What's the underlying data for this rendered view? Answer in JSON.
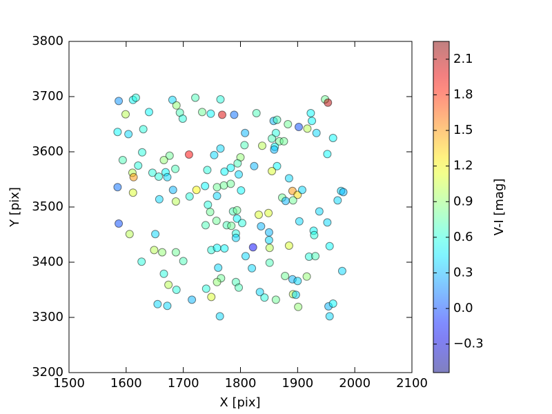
{
  "chart_data": {
    "type": "scatter",
    "xlabel": "X [pix]",
    "ylabel": "Y [pix]",
    "colorbar_label": "V-I [mag]",
    "xlim": [
      1500,
      2100
    ],
    "xticks": [
      1500,
      1600,
      1700,
      1800,
      1900,
      2000,
      2100
    ],
    "ylim": [
      3200,
      3800
    ],
    "yticks": [
      3200,
      3300,
      3400,
      3500,
      3600,
      3700,
      3800
    ],
    "colormap": "jet",
    "alpha": 0.5,
    "clim": [
      -0.54,
      2.25
    ],
    "cticks": [
      {
        "value": -0.3,
        "label": "−0.3"
      },
      {
        "value": 0,
        "label": "0.0"
      },
      0.3,
      0.6,
      0.9,
      1.2,
      1.5,
      1.8,
      2.1
    ],
    "x": [
      1587,
      1612,
      1617,
      1681,
      1688,
      1721,
      1733,
      1748,
      1765,
      1768,
      1789,
      1828,
      1948,
      1953,
      1640,
      1599,
      1694,
      1699,
      1858,
      1864,
      1883,
      1902,
      1917,
      1923,
      1925,
      1933,
      1962,
      1585,
      1604,
      1630,
      1808,
      1862,
      1855,
      1868,
      1876,
      1807,
      1838,
      1860,
      1859,
      1765,
      1754,
      1710,
      1676,
      1628,
      1594,
      1666,
      1621,
      1800,
      1795,
      1824,
      1864,
      1952,
      1742,
      1772,
      1783,
      1797,
      1855,
      1885,
      1686,
      1669,
      1672,
      1646,
      1657,
      1611,
      1613,
      1585,
      1612,
      1658,
      1682,
      1687,
      1723,
      1738,
      1759,
      1771,
      1783,
      1801,
      1759,
      1711,
      1891,
      1900,
      1908,
      1873,
      1879,
      1892,
      1976,
      1980,
      1970,
      1743,
      1747,
      1787,
      1794,
      1794,
      1832,
      1849,
      1938,
      1587,
      1758,
      1739,
      1776,
      1784,
      1803,
      1836,
      1850,
      1903,
      1952,
      1928,
      1929,
      1606,
      1651,
      1792,
      1792,
      1850,
      1822,
      1649,
      1663,
      1687,
      1749,
      1759,
      1772,
      1851,
      1885,
      1920,
      1931,
      1956,
      1809,
      1627,
      1700,
      1761,
      1820,
      1851,
      1978,
      1666,
      1766,
      1878,
      1916,
      1891,
      1900,
      1674,
      1759,
      1792,
      1797,
      1740,
      1688,
      1834,
      1892,
      1897,
      1749,
      1842,
      1862,
      1715,
      1655,
      1672,
      1901,
      1954,
      1962,
      1764,
      1956
    ],
    "y": [
      3692,
      3694,
      3698,
      3694,
      3684,
      3698,
      3672,
      3669,
      3695,
      3667,
      3667,
      3670,
      3695,
      3689,
      3672,
      3668,
      3671,
      3660,
      3656,
      3658,
      3650,
      3645,
      3642,
      3670,
      3656,
      3634,
      3625,
      3636,
      3632,
      3641,
      3634,
      3634,
      3624,
      3619,
      3619,
      3612,
      3611,
      3609,
      3604,
      3606,
      3594,
      3595,
      3593,
      3599,
      3585,
      3585,
      3575,
      3590,
      3579,
      3574,
      3574,
      3596,
      3567,
      3564,
      3571,
      3559,
      3565,
      3552,
      3569,
      3563,
      3554,
      3562,
      3555,
      3562,
      3554,
      3536,
      3526,
      3514,
      3531,
      3510,
      3531,
      3538,
      3536,
      3539,
      3542,
      3530,
      3520,
      3519,
      3529,
      3522,
      3531,
      3517,
      3511,
      3512,
      3529,
      3527,
      3512,
      3504,
      3491,
      3492,
      3494,
      3479,
      3486,
      3489,
      3492,
      3470,
      3475,
      3467,
      3467,
      3466,
      3471,
      3465,
      3454,
      3474,
      3472,
      3457,
      3449,
      3451,
      3451,
      3452,
      3444,
      3440,
      3427,
      3422,
      3418,
      3418,
      3422,
      3426,
      3425,
      3426,
      3430,
      3410,
      3411,
      3429,
      3411,
      3401,
      3402,
      3390,
      3389,
      3399,
      3384,
      3379,
      3371,
      3375,
      3374,
      3369,
      3366,
      3359,
      3364,
      3364,
      3354,
      3352,
      3350,
      3346,
      3342,
      3341,
      3337,
      3336,
      3332,
      3332,
      3324,
      3321,
      3319,
      3320,
      3325,
      3302,
      3302
    ],
    "c": [
      0.2,
      0.5,
      0.6,
      0.4,
      0.9,
      0.7,
      0.8,
      0.5,
      0.6,
      2.0,
      0.1,
      0.7,
      0.8,
      2.1,
      0.5,
      1.0,
      0.7,
      0.6,
      0.3,
      0.7,
      0.8,
      0.0,
      1.0,
      0.5,
      0.5,
      0.4,
      0.5,
      0.5,
      0.4,
      0.6,
      0.3,
      0.6,
      0.7,
      0.8,
      0.8,
      0.7,
      1.0,
      0.5,
      0.3,
      0.4,
      0.4,
      1.9,
      0.8,
      0.6,
      0.7,
      0.9,
      0.6,
      0.9,
      0.7,
      0.3,
      0.5,
      0.5,
      0.6,
      0.5,
      0.5,
      0.4,
      1.1,
      0.4,
      0.7,
      0.5,
      0.4,
      0.6,
      0.6,
      1.0,
      1.5,
      0.1,
      1.1,
      0.4,
      0.3,
      1.0,
      1.2,
      0.5,
      0.8,
      0.8,
      0.8,
      0.5,
      0.4,
      0.6,
      1.5,
      1.3,
      0.4,
      0.8,
      0.3,
      0.8,
      0.4,
      0.3,
      0.4,
      0.6,
      0.8,
      0.7,
      0.8,
      0.5,
      1.1,
      1.1,
      0.4,
      0.0,
      0.8,
      0.7,
      0.7,
      0.8,
      0.6,
      0.3,
      0.3,
      0.4,
      0.4,
      0.5,
      0.6,
      1.0,
      0.4,
      0.6,
      0.4,
      0.4,
      -0.2,
      1.0,
      0.9,
      0.8,
      0.6,
      0.5,
      0.5,
      1.0,
      1.1,
      0.6,
      0.7,
      0.5,
      0.4,
      0.6,
      0.7,
      0.4,
      0.4,
      0.7,
      0.4,
      0.6,
      0.8,
      0.8,
      0.9,
      0.3,
      0.4,
      1.0,
      0.9,
      0.7,
      0.7,
      0.6,
      0.6,
      0.4,
      1.0,
      0.4,
      1.1,
      0.6,
      0.8,
      0.3,
      0.4,
      0.4,
      0.9,
      0.3,
      0.5,
      0.4,
      0.4
    ]
  }
}
